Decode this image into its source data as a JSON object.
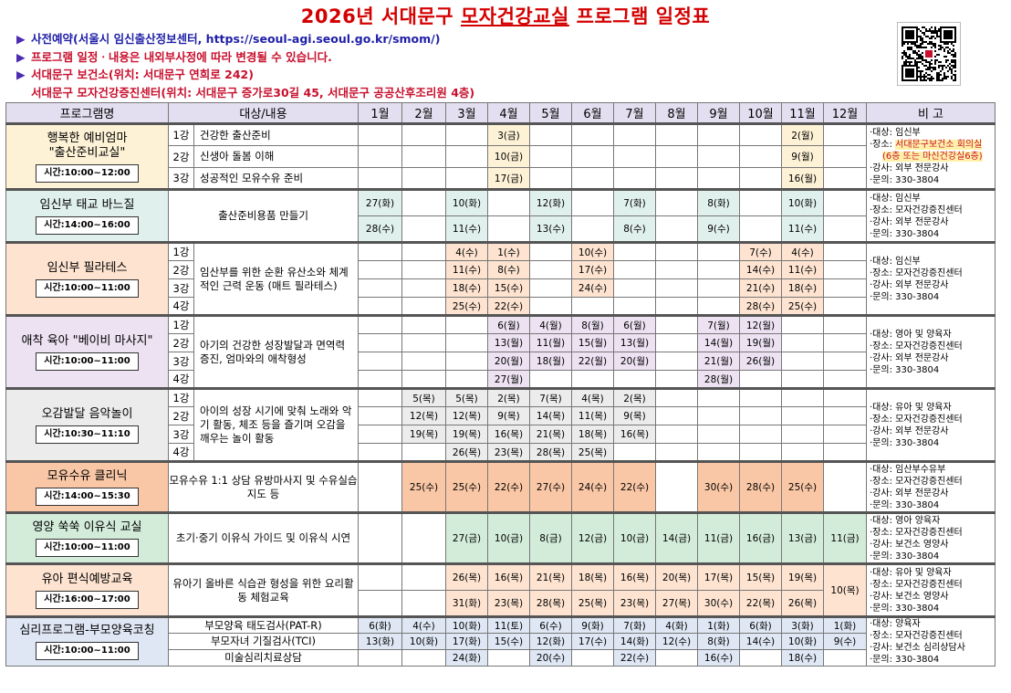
{
  "title": {
    "year": "2026년",
    "text": "서대문구 모자건강교실 프로그램 일정표",
    "underlined": "모자건강교실"
  },
  "notes": [
    {
      "bullet": "▶",
      "text": "사전예약(서울시 임신출산정보센터, https://seoul-agi.seoul.go.kr/smom/)",
      "style": "blue"
    },
    {
      "bullet": "▶",
      "text": "프로그램 일정ㆍ내용은 내외부사정에 따라 변경될 수 있습니다.",
      "style": "red"
    },
    {
      "bullet": "▶",
      "text": "서대문구 보건소(위치: 서대문구 연희로 242)",
      "style": "red"
    },
    {
      "bullet": "",
      "text": "서대문구 모자건강증진센터(위치: 서대문구 증가로30길 45, 서대문구 공공산후조리원 4층)",
      "style": "red"
    }
  ],
  "qr_icon": "qr-code-icon",
  "header": {
    "program": "프로그램명",
    "content": "대상/내용",
    "months": [
      "1월",
      "2월",
      "3월",
      "4월",
      "5월",
      "6월",
      "7월",
      "8월",
      "9월",
      "10월",
      "11월",
      "12월"
    ],
    "note": "비 고"
  },
  "groups": [
    {
      "color": "#fdf1d6",
      "name": "행복한 예비엄마\n\"출산준비교실\"",
      "time": "시간:10:00~12:00",
      "rows": [
        {
          "lesson": "1강",
          "content": "건강한 출산준비",
          "cells": [
            "",
            "",
            "",
            "3(금)",
            "",
            "",
            "",
            "",
            "",
            "",
            "2(월)",
            ""
          ]
        },
        {
          "lesson": "2강",
          "content": "신생아 돌봄 이해",
          "cells": [
            "",
            "",
            "",
            "10(금)",
            "",
            "",
            "",
            "",
            "",
            "",
            "9(월)",
            ""
          ]
        },
        {
          "lesson": "3강",
          "content": "성공적인 모유수유 준비",
          "cells": [
            "",
            "",
            "",
            "17(금)",
            "",
            "",
            "",
            "",
            "",
            "",
            "16(월)",
            ""
          ]
        }
      ],
      "note": [
        "·대상: 임신부",
        "·장소: ",
        "서대문구보건소 회의실",
        "(6층 또는 마신건강실6층)",
        "·강사: 외부 전문강사",
        "·문의: 330-3804"
      ]
    },
    {
      "color": "#e0f0ec",
      "name": "임신부 태교 바느질",
      "time": "시간:14:00~16:00",
      "rows": [
        {
          "lesson": "",
          "content": "출산준비용품 만들기",
          "cells": [
            "27(화)",
            "",
            "10(화)",
            "",
            "12(화)",
            "",
            "7(화)",
            "",
            "8(화)",
            "",
            "10(화)",
            ""
          ]
        },
        {
          "lesson": "",
          "content": "",
          "cells": [
            "28(수)",
            "",
            "11(수)",
            "",
            "13(수)",
            "",
            "8(수)",
            "",
            "9(수)",
            "",
            "11(수)",
            ""
          ]
        }
      ],
      "note": [
        "·대상: 임신부",
        "·장소: 모자건강증진센터",
        "·강사: 외부 전문강사",
        "·문의: 330-3804"
      ]
    },
    {
      "color": "#fde3d0",
      "name": "임신부 필라테스",
      "time": "시간:10:00~11:00",
      "rows": [
        {
          "lesson": "1강",
          "content": "임산부를 위한 순환 유산소와 체계적인 근력 운동 (매트 필라테스)",
          "cells": [
            "",
            "",
            "4(수)",
            "1(수)",
            "",
            "10(수)",
            "",
            "",
            "",
            "7(수)",
            "4(수)",
            ""
          ]
        },
        {
          "lesson": "2강",
          "content": "",
          "cells": [
            "",
            "",
            "11(수)",
            "8(수)",
            "",
            "17(수)",
            "",
            "",
            "",
            "14(수)",
            "11(수)",
            ""
          ]
        },
        {
          "lesson": "3강",
          "content": "",
          "cells": [
            "",
            "",
            "18(수)",
            "15(수)",
            "",
            "24(수)",
            "",
            "",
            "",
            "21(수)",
            "18(수)",
            ""
          ]
        },
        {
          "lesson": "4강",
          "content": "",
          "cells": [
            "",
            "",
            "25(수)",
            "22(수)",
            "",
            "",
            "",
            "",
            "",
            "28(수)",
            "25(수)",
            ""
          ]
        }
      ],
      "note": [
        "·대상: 임신부",
        "·장소: 모자건강증진센터",
        "·강사: 외부 전문강사",
        "·문의: 330-3804"
      ]
    },
    {
      "color": "#ece2f2",
      "name": "애착 육아 \"베이비 마사지\"",
      "time": "시간:10:00~11:00",
      "rows": [
        {
          "lesson": "1강",
          "content": "아기의 건강한 성장발달과 면역력 증진, 엄마와의 애착형성",
          "cells": [
            "",
            "",
            "",
            "6(월)",
            "4(월)",
            "8(월)",
            "6(월)",
            "",
            "7(월)",
            "12(월)",
            "",
            ""
          ]
        },
        {
          "lesson": "2강",
          "content": "",
          "cells": [
            "",
            "",
            "",
            "13(월)",
            "11(월)",
            "15(월)",
            "13(월)",
            "",
            "14(월)",
            "19(월)",
            "",
            ""
          ]
        },
        {
          "lesson": "3강",
          "content": "",
          "cells": [
            "",
            "",
            "",
            "20(월)",
            "18(월)",
            "22(월)",
            "20(월)",
            "",
            "21(월)",
            "26(월)",
            "",
            ""
          ]
        },
        {
          "lesson": "4강",
          "content": "",
          "cells": [
            "",
            "",
            "",
            "27(월)",
            "",
            "",
            "",
            "",
            "28(월)",
            "",
            "",
            ""
          ]
        }
      ],
      "note": [
        "·대상: 영아 및 양육자",
        "·장소: 모자건강증진센터",
        "·강사: 외부 전문강사",
        "·문의: 330-3804"
      ]
    },
    {
      "color": "#ececec",
      "name": "오감발달 음악놀이",
      "time": "시간:10:30~11:10",
      "rows": [
        {
          "lesson": "1강",
          "content": "아이의 성장 시기에 맞춰 노래와 악기 활동, 체조 등을 즐기며 오감을 깨우는 놀이 활동",
          "cells": [
            "",
            "5(목)",
            "5(목)",
            "2(목)",
            "7(목)",
            "4(목)",
            "2(목)",
            "",
            "",
            "",
            "",
            ""
          ]
        },
        {
          "lesson": "2강",
          "content": "",
          "cells": [
            "",
            "12(목)",
            "12(목)",
            "9(목)",
            "14(목)",
            "11(목)",
            "9(목)",
            "",
            "",
            "",
            "",
            ""
          ]
        },
        {
          "lesson": "3강",
          "content": "",
          "cells": [
            "",
            "19(목)",
            "19(목)",
            "16(목)",
            "21(목)",
            "18(목)",
            "16(목)",
            "",
            "",
            "",
            "",
            ""
          ]
        },
        {
          "lesson": "4강",
          "content": "",
          "cells": [
            "",
            "",
            "26(목)",
            "23(목)",
            "28(목)",
            "25(목)",
            "",
            "",
            "",
            "",
            "",
            ""
          ]
        }
      ],
      "note": [
        "·대상: 유아 및 양육자",
        "·장소: 모자건강증진센터",
        "·강사: 외부 전문강사",
        "·문의: 330-3804"
      ]
    },
    {
      "color": "#f9c7a6",
      "name": "모유수유 클리닉",
      "time": "시간:14:00~15:30",
      "rows": [
        {
          "lesson": "",
          "content": "모유수유 1:1 상담 유방마사지 및 수유실습지도 등",
          "cells": [
            "",
            "25(수)",
            "25(수)",
            "22(수)",
            "27(수)",
            "24(수)",
            "22(수)",
            "",
            "30(수)",
            "28(수)",
            "25(수)",
            ""
          ]
        }
      ],
      "note": [
        "·대상: 임산부수유부",
        "·장소: 모자건강증진센터",
        "·강사: 외부 전문강사",
        "·문의: 330-3804"
      ]
    },
    {
      "color": "#d3ecd9",
      "name": "영양 쑥쑥 이유식 교실",
      "time": "시간:10:00~11:00",
      "rows": [
        {
          "lesson": "",
          "content": "초기·중기 이유식 가이드 및 이유식 시연",
          "cells": [
            "",
            "",
            "27(금)",
            "10(금)",
            "8(금)",
            "12(금)",
            "10(금)",
            "14(금)",
            "11(금)",
            "16(금)",
            "13(금)",
            "11(금)"
          ]
        }
      ],
      "note": [
        "·대상: 영아 양육자",
        "·장소: 모자건강증진센터",
        "·강사: 보건소 영양사",
        "·문의: 330-3804"
      ]
    },
    {
      "color": "#fde3d0",
      "name": "유아 편식예방교육",
      "time": "시간:16:00~17:00",
      "rows": [
        {
          "lesson": "",
          "content": "유아기 올바른 식습관 형성을 위한 요리활동 체험교육",
          "cells": [
            "",
            "",
            "26(목)",
            "16(목)",
            "21(목)",
            "18(목)",
            "16(목)",
            "20(목)",
            "17(목)",
            "15(목)",
            "19(목)",
            "10(목)"
          ]
        },
        {
          "lesson": "",
          "content": "",
          "cells": [
            "",
            "",
            "31(화)",
            "23(목)",
            "28(목)",
            "25(목)",
            "23(목)",
            "27(목)",
            "30(수)",
            "22(목)",
            "26(목)",
            ""
          ]
        }
      ],
      "note": [
        "·대상: 유아 및 양육자",
        "·장소: 모자건강증진센터",
        "·강사: 보건소 영양사",
        "·문의: 330-3804"
      ]
    },
    {
      "color": "#dfe7f5",
      "name": "심리프로그램-부모양육코칭",
      "time": "시간:10:00~11:00",
      "rows": [
        {
          "lesson": "",
          "content": "부모양육 태도검사(PAT-R)",
          "cells": [
            "6(화)",
            "4(수)",
            "10(화)",
            "11(토)",
            "6(수)",
            "9(화)",
            "7(화)",
            "4(화)",
            "1(화)",
            "6(화)",
            "3(화)",
            "1(화)"
          ]
        },
        {
          "lesson": "",
          "content": "부모자녀 기질검사(TCI)",
          "cells": [
            "13(화)",
            "10(화)",
            "17(화)",
            "15(수)",
            "12(화)",
            "17(수)",
            "14(화)",
            "12(수)",
            "8(화)",
            "14(수)",
            "10(화)",
            "9(수)"
          ]
        },
        {
          "lesson": "",
          "content": "미술심리치료상담",
          "cells": [
            "",
            "",
            "24(화)",
            "",
            "20(수)",
            "",
            "22(수)",
            "",
            "16(수)",
            "",
            "18(수)",
            ""
          ]
        }
      ],
      "note": [
        "·대상: 양육자",
        "·장소: 모자건강증진센터",
        "·강사: 보건소 심리상담사",
        "·문의: 330-3804"
      ]
    }
  ]
}
